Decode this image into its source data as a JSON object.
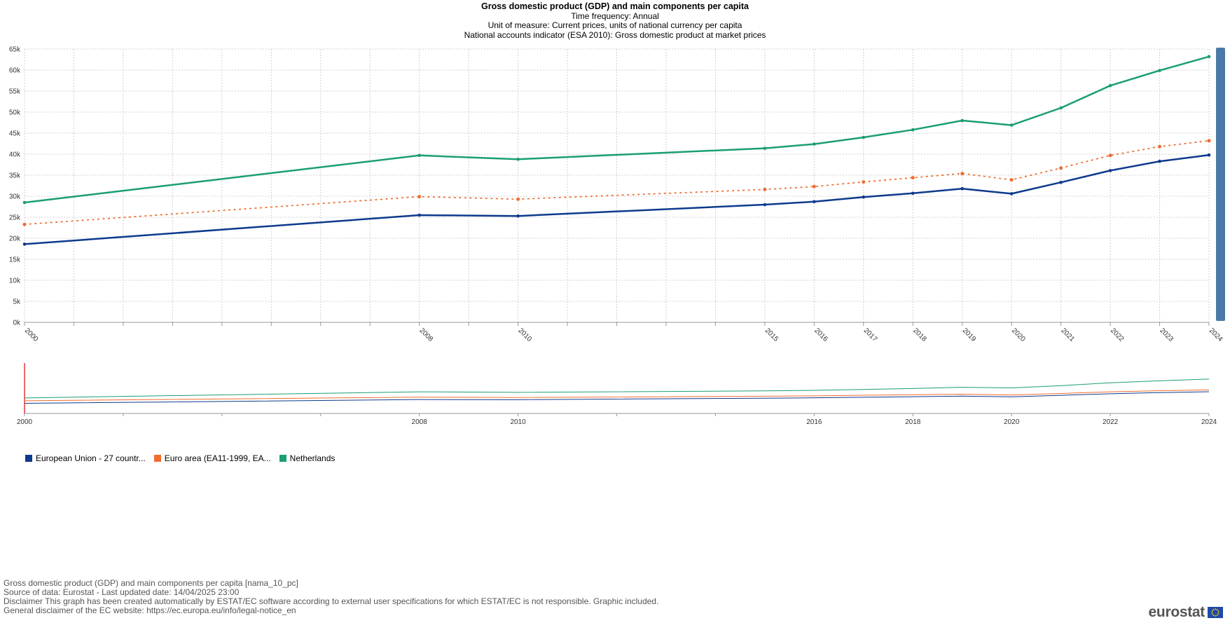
{
  "header": {
    "title": "Gross domestic product (GDP) and main components per capita",
    "line1": "Time frequency:  Annual",
    "line2": "Unit of measure:  Current prices, units of national currency per capita",
    "line3": "National accounts indicator (ESA 2010):  Gross domestic product at market prices"
  },
  "chart_data": {
    "type": "line",
    "x": [
      2000,
      2008,
      2010,
      2015,
      2016,
      2017,
      2018,
      2019,
      2020,
      2021,
      2022,
      2023,
      2024
    ],
    "ylim": [
      0,
      65000
    ],
    "yticks": [
      "0k",
      "5k",
      "10k",
      "15k",
      "20k",
      "25k",
      "30k",
      "35k",
      "40k",
      "45k",
      "50k",
      "55k",
      "60k",
      "65k"
    ],
    "grid": true,
    "legend_position": "bottom-left",
    "series": [
      {
        "name": "European Union - 27 countr...",
        "color": "#0e3a8c",
        "style": "solid",
        "values": [
          18600,
          25500,
          25300,
          28000,
          28700,
          29800,
          30700,
          31800,
          30600,
          33300,
          36100,
          38300,
          39800
        ]
      },
      {
        "name": "Euro area (EA11-1999, EA...",
        "color": "#f06d2f",
        "style": "dotted",
        "values": [
          23300,
          29900,
          29300,
          31600,
          32300,
          33400,
          34400,
          35400,
          33900,
          36700,
          39700,
          41800,
          43200
        ]
      },
      {
        "name": "Netherlands",
        "color": "#1a9e74",
        "style": "solid",
        "values": [
          28500,
          39700,
          38800,
          41400,
          42400,
          44000,
          45800,
          48000,
          46900,
          51000,
          56300,
          59900,
          63200
        ]
      }
    ],
    "navigator_ticks": [
      2000,
      2008,
      2010,
      2016,
      2018,
      2020,
      2022,
      2024
    ]
  },
  "footer": {
    "line1": "Gross domestic product (GDP) and main components per capita [nama_10_pc]",
    "line2": "Source of data: Eurostat - Last updated date: 14/04/2025 23:00",
    "line3": "Disclaimer This graph has been created automatically by ESTAT/EC software according to external user specifications for which ESTAT/EC is not responsible. Graphic included.",
    "line4": "General disclaimer of the EC website: https://ec.europa.eu/info/legal-notice_en"
  },
  "logo": {
    "text": "eurostat"
  }
}
